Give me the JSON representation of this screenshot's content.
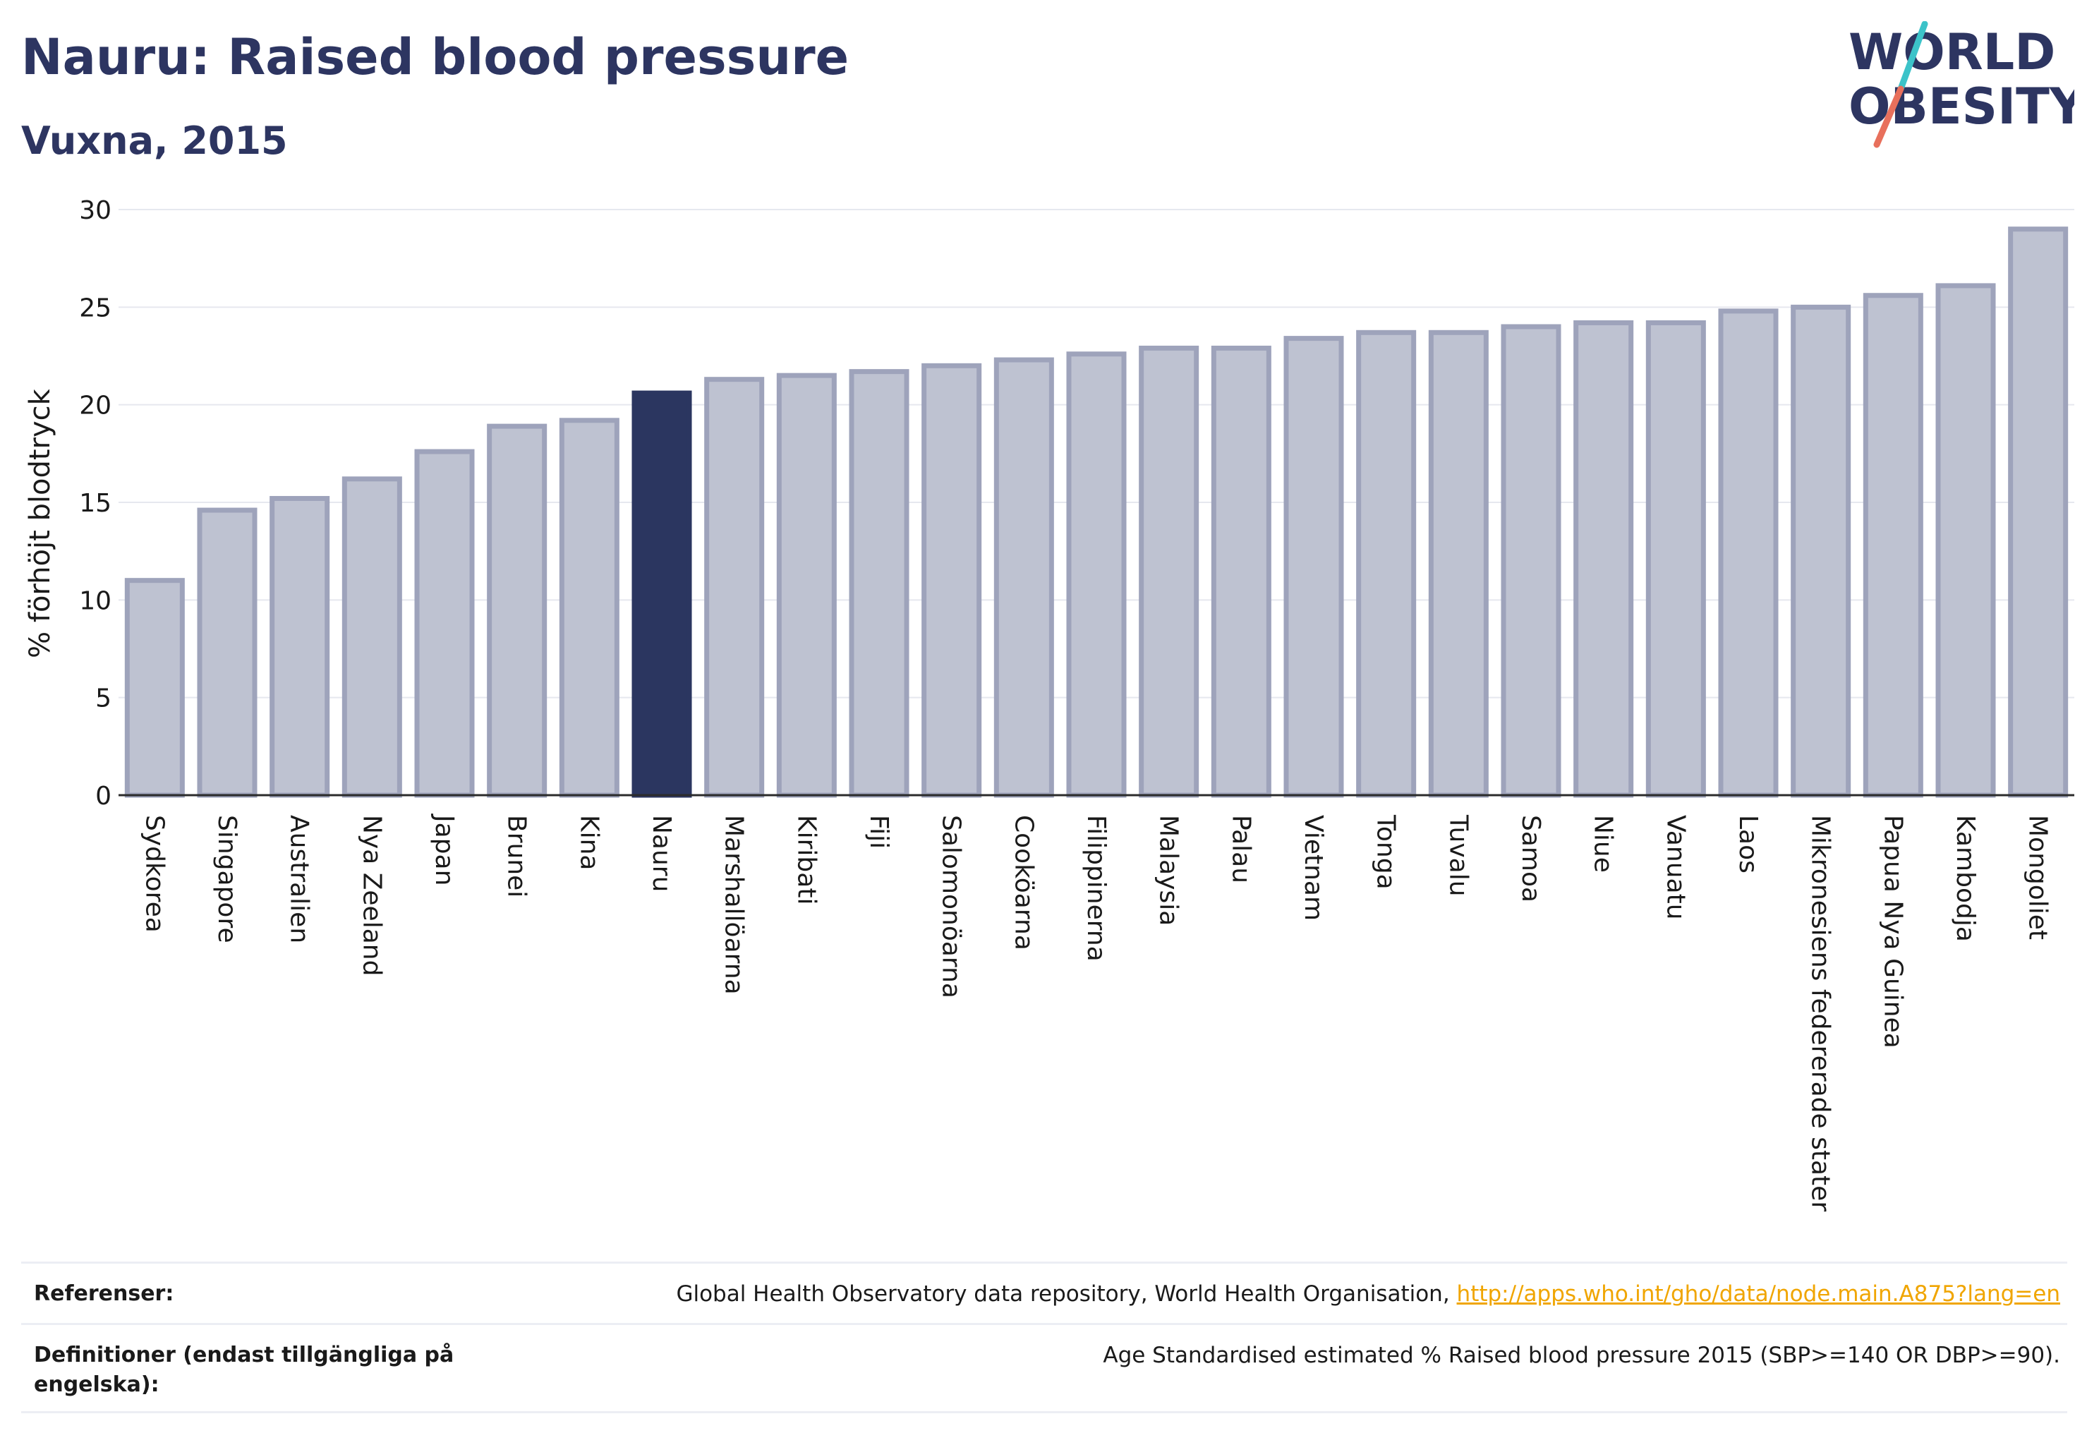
{
  "header": {
    "title": "Nauru: Raised blood pressure",
    "subtitle": "Vuxna, 2015"
  },
  "logo": {
    "line1": "WORLD",
    "line2": "OBESITY",
    "slash_colors": [
      "#3cc3c9",
      "#e8705c"
    ]
  },
  "colors": {
    "highlight": "#2b3660",
    "bar_fill": "#bec2d1",
    "bar_stroke": "#9ea3bb",
    "axis_text": "#1a1a1a",
    "grid": "#e6e8ef"
  },
  "chart_data": {
    "type": "bar",
    "ylabel": "% förhöjt blodtryck",
    "xlabel": "",
    "ylim": [
      0,
      30
    ],
    "yticks": [
      0,
      5,
      10,
      15,
      20,
      25,
      30
    ],
    "grid": true,
    "highlight": "Nauru",
    "categories": [
      "Sydkorea",
      "Singapore",
      "Australien",
      "Nya Zeeland",
      "Japan",
      "Brunei",
      "Kina",
      "Nauru",
      "Marshallöarna",
      "Kiribati",
      "Fiji",
      "Salomonöarna",
      "Cooköarna",
      "Filippinerna",
      "Malaysia",
      "Palau",
      "Vietnam",
      "Tonga",
      "Tuvalu",
      "Samoa",
      "Niue",
      "Vanuatu",
      "Laos",
      "Mikronesiens federerade stater",
      "Papua Nya Guinea",
      "Kambodja",
      "Mongoliet"
    ],
    "values": [
      11.0,
      14.6,
      15.2,
      16.2,
      17.6,
      18.9,
      19.2,
      20.6,
      21.3,
      21.5,
      21.7,
      22.0,
      22.3,
      22.6,
      22.9,
      22.9,
      23.4,
      23.7,
      23.7,
      24.0,
      24.2,
      24.2,
      24.8,
      25.0,
      25.6,
      26.1,
      29.0
    ]
  },
  "references": {
    "ref_label": "Referenser:",
    "ref_text": "Global Health Observatory data repository, World Health Organisation, ",
    "ref_link": "http://apps.who.int/gho/data/node.main.A875?lang=en",
    "def_label": "Definitioner (endast tillgängliga på engelska):",
    "def_text": "Age Standardised estimated % Raised blood pressure 2015 (SBP>=140 OR DBP>=90)."
  }
}
